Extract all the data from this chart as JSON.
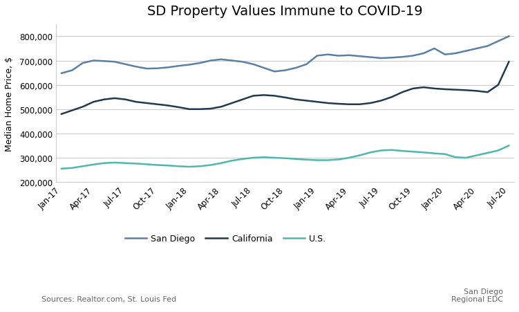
{
  "title": "SD Property Values Immune to COVID-19",
  "ylabel": "Median Home Price, $",
  "source_left": "Sources: Realtor.com, St. Louis Fed",
  "source_right": "San Diego\nRegional EDC",
  "ylim": [
    200000,
    850000
  ],
  "yticks": [
    200000,
    300000,
    400000,
    500000,
    600000,
    700000,
    800000
  ],
  "x_tick_labels": [
    "Jan-17",
    "Apr-17",
    "Jul-17",
    "Oct-17",
    "Jan-18",
    "Apr-18",
    "Jul-18",
    "Oct-18",
    "Jan-19",
    "Apr-19",
    "Jul-19",
    "Oct-19",
    "Jan-20",
    "Apr-20",
    "Jul-20"
  ],
  "x_tick_positions": [
    0,
    3,
    6,
    9,
    12,
    15,
    18,
    21,
    24,
    27,
    30,
    33,
    36,
    39,
    42
  ],
  "san_diego": [
    648000,
    660000,
    690000,
    700000,
    698000,
    695000,
    685000,
    675000,
    667000,
    668000,
    672000,
    678000,
    683000,
    690000,
    700000,
    705000,
    700000,
    695000,
    685000,
    670000,
    655000,
    660000,
    670000,
    685000,
    720000,
    725000,
    720000,
    722000,
    718000,
    714000,
    710000,
    712000,
    715000,
    720000,
    730000,
    750000,
    725000,
    730000,
    740000,
    750000,
    760000,
    780000,
    800000
  ],
  "california": [
    480000,
    495000,
    510000,
    530000,
    540000,
    545000,
    540000,
    530000,
    525000,
    520000,
    515000,
    508000,
    500000,
    500000,
    502000,
    510000,
    525000,
    540000,
    555000,
    558000,
    555000,
    548000,
    540000,
    535000,
    530000,
    525000,
    522000,
    520000,
    520000,
    525000,
    535000,
    550000,
    570000,
    585000,
    590000,
    585000,
    582000,
    580000,
    578000,
    575000,
    570000,
    600000,
    695000
  ],
  "us": [
    255000,
    258000,
    265000,
    272000,
    278000,
    280000,
    278000,
    276000,
    273000,
    270000,
    268000,
    265000,
    263000,
    265000,
    270000,
    278000,
    288000,
    295000,
    300000,
    302000,
    300000,
    298000,
    295000,
    292000,
    290000,
    290000,
    293000,
    300000,
    310000,
    322000,
    330000,
    332000,
    328000,
    325000,
    322000,
    318000,
    315000,
    302000,
    300000,
    310000,
    320000,
    330000,
    350000
  ],
  "san_diego_color": "#5b7fa6",
  "california_color": "#1f3a4f",
  "us_color": "#4db8ad",
  "background_color": "#ffffff",
  "grid_color": "#cccccc",
  "legend_labels": [
    "San Diego",
    "California",
    "U.S."
  ]
}
